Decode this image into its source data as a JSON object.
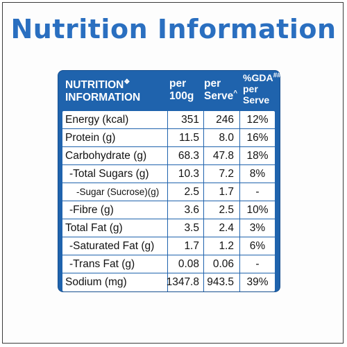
{
  "heading": "Nutrition Information",
  "panel_header": {
    "name_line1": "NUTRITION",
    "name_mark": "❖",
    "name_line2": "INFORMATION",
    "per100_line1": "per",
    "per100_line2": "100g",
    "serve_line1": "per",
    "serve_line2": "Serve",
    "serve_mark": "^",
    "gda_line1": "%GDA",
    "gda_mark": "##",
    "gda_line2": "per",
    "gda_line3": "Serve"
  },
  "rows": [
    {
      "name": "Energy (kcal)",
      "per100": "351",
      "serve": "246",
      "gda": "12%"
    },
    {
      "name": "Protein (g)",
      "per100": "11.5",
      "serve": "8.0",
      "gda": "16%"
    },
    {
      "name": "Carbohydrate (g)",
      "per100": "68.3",
      "serve": "47.8",
      "gda": "18%"
    },
    {
      "name": "-Total Sugars (g)",
      "per100": "10.3",
      "serve": "7.2",
      "gda": "8%"
    },
    {
      "name": "-Sugar (Sucrose)(g)",
      "per100": "2.5",
      "serve": "1.7",
      "gda": "-"
    },
    {
      "name": "-Fibre (g)",
      "per100": "3.6",
      "serve": "2.5",
      "gda": "10%"
    },
    {
      "name": "Total Fat (g)",
      "per100": "3.5",
      "serve": "2.4",
      "gda": "3%"
    },
    {
      "name": "-Saturated Fat (g)",
      "per100": "1.7",
      "serve": "1.2",
      "gda": "6%"
    },
    {
      "name": "-Trans Fat (g)",
      "per100": "0.08",
      "serve": "0.06",
      "gda": "-"
    },
    {
      "name": "Sodium (mg)",
      "per100": "1347.8",
      "serve": "943.5",
      "gda": "39%"
    }
  ],
  "colors": {
    "heading": "#2a6fc0",
    "panel": "#1f63ad"
  }
}
